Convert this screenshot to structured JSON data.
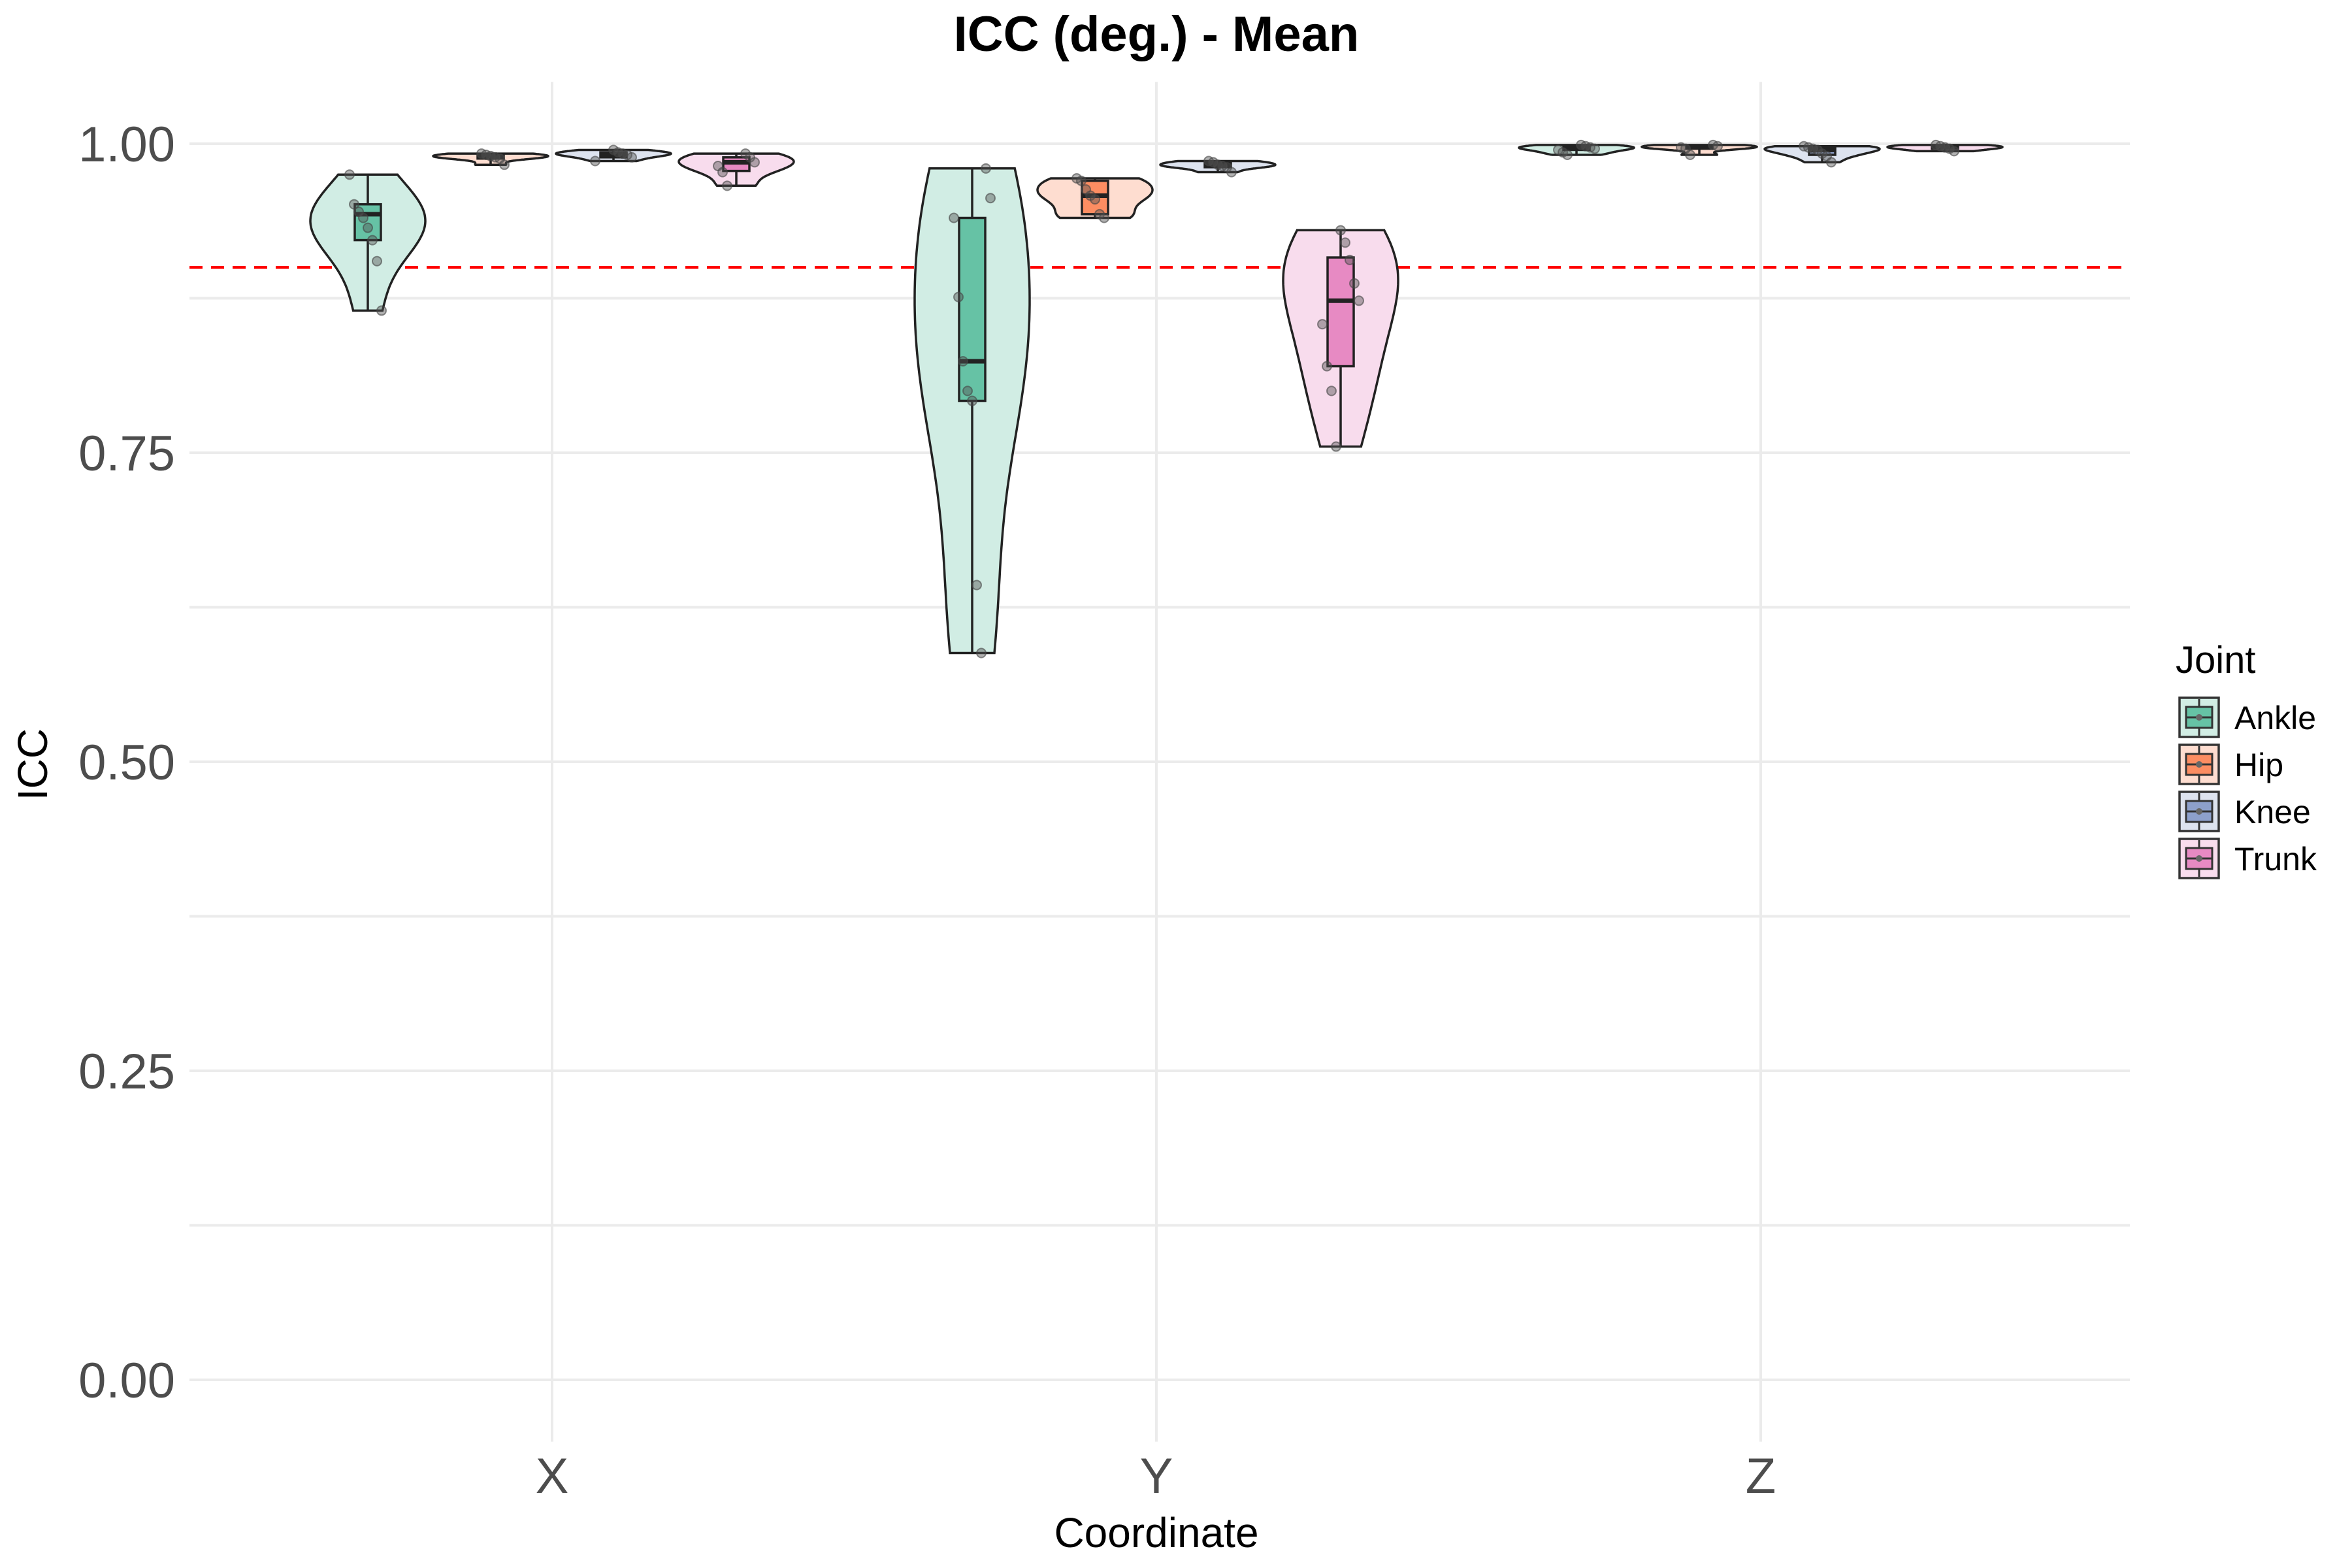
{
  "chart_data": {
    "type": "violin",
    "title": "ICC (deg.) - Mean",
    "xlabel": "Coordinate",
    "ylabel": "ICC",
    "categories": [
      "X",
      "Y",
      "Z"
    ],
    "ylim": [
      -0.05,
      1.05
    ],
    "yticks": [
      0,
      0.25,
      0.5,
      0.75,
      1.0
    ],
    "ytick_labels": [
      "0.00",
      "0.25",
      "0.50",
      "0.75",
      "1.00"
    ],
    "grid": true,
    "reference_line": {
      "y": 0.9,
      "color": "#ff0000",
      "style": "dashed"
    },
    "legend": {
      "title": "Joint",
      "placement": "right",
      "entries": [
        "Ankle",
        "Hip",
        "Knee",
        "Trunk"
      ]
    },
    "series": [
      {
        "name": "Ankle",
        "color": "#66c2a5",
        "groups": [
          {
            "category": "X",
            "min": 0.865,
            "q1": 0.922,
            "median": 0.943,
            "q3": 0.951,
            "max": 0.975,
            "points": [
              0.975,
              0.951,
              0.945,
              0.94,
              0.932,
              0.922,
              0.905,
              0.865
            ]
          },
          {
            "category": "Y",
            "min": 0.588,
            "q1": 0.792,
            "median": 0.824,
            "q3": 0.94,
            "max": 0.98,
            "points": [
              0.98,
              0.956,
              0.94,
              0.876,
              0.824,
              0.8,
              0.792,
              0.643,
              0.588
            ]
          },
          {
            "category": "Z",
            "min": 0.991,
            "q1": 0.995,
            "median": 0.997,
            "q3": 0.998,
            "max": 0.999,
            "points": [
              0.999,
              0.998,
              0.997,
              0.996,
              0.995,
              0.993,
              0.991
            ]
          }
        ]
      },
      {
        "name": "Hip",
        "color": "#fc8d62",
        "groups": [
          {
            "category": "X",
            "min": 0.983,
            "q1": 0.988,
            "median": 0.99,
            "q3": 0.991,
            "max": 0.992,
            "points": [
              0.992,
              0.991,
              0.99,
              0.989,
              0.988,
              0.983
            ]
          },
          {
            "category": "Y",
            "min": 0.94,
            "q1": 0.943,
            "median": 0.958,
            "q3": 0.97,
            "max": 0.972,
            "points": [
              0.972,
              0.97,
              0.963,
              0.958,
              0.955,
              0.943,
              0.94
            ]
          },
          {
            "category": "Z",
            "min": 0.991,
            "q1": 0.996,
            "median": 0.997,
            "q3": 0.998,
            "max": 0.999,
            "points": [
              0.999,
              0.998,
              0.997,
              0.996,
              0.991
            ]
          }
        ]
      },
      {
        "name": "Knee",
        "color": "#8da0cb",
        "groups": [
          {
            "category": "X",
            "min": 0.986,
            "q1": 0.989,
            "median": 0.991,
            "q3": 0.993,
            "max": 0.995,
            "points": [
              0.995,
              0.993,
              0.992,
              0.991,
              0.989,
              0.986
            ]
          },
          {
            "category": "Y",
            "min": 0.977,
            "q1": 0.981,
            "median": 0.983,
            "q3": 0.985,
            "max": 0.986,
            "points": [
              0.986,
              0.985,
              0.983,
              0.982,
              0.981,
              0.977
            ]
          },
          {
            "category": "Z",
            "min": 0.985,
            "q1": 0.991,
            "median": 0.995,
            "q3": 0.997,
            "max": 0.998,
            "points": [
              0.998,
              0.997,
              0.996,
              0.995,
              0.992,
              0.99,
              0.985
            ]
          }
        ]
      },
      {
        "name": "Trunk",
        "color": "#e78ac3",
        "groups": [
          {
            "category": "X",
            "min": 0.966,
            "q1": 0.978,
            "median": 0.985,
            "q3": 0.989,
            "max": 0.992,
            "points": [
              0.992,
              0.989,
              0.985,
              0.982,
              0.977,
              0.966
            ]
          },
          {
            "category": "Y",
            "min": 0.755,
            "q1": 0.82,
            "median": 0.873,
            "q3": 0.908,
            "max": 0.93,
            "points": [
              0.93,
              0.92,
              0.906,
              0.887,
              0.873,
              0.854,
              0.82,
              0.8,
              0.755
            ]
          },
          {
            "category": "Z",
            "min": 0.994,
            "q1": 0.996,
            "median": 0.997,
            "q3": 0.998,
            "max": 0.999,
            "points": [
              0.999,
              0.998,
              0.997,
              0.996,
              0.994
            ]
          }
        ]
      }
    ]
  }
}
